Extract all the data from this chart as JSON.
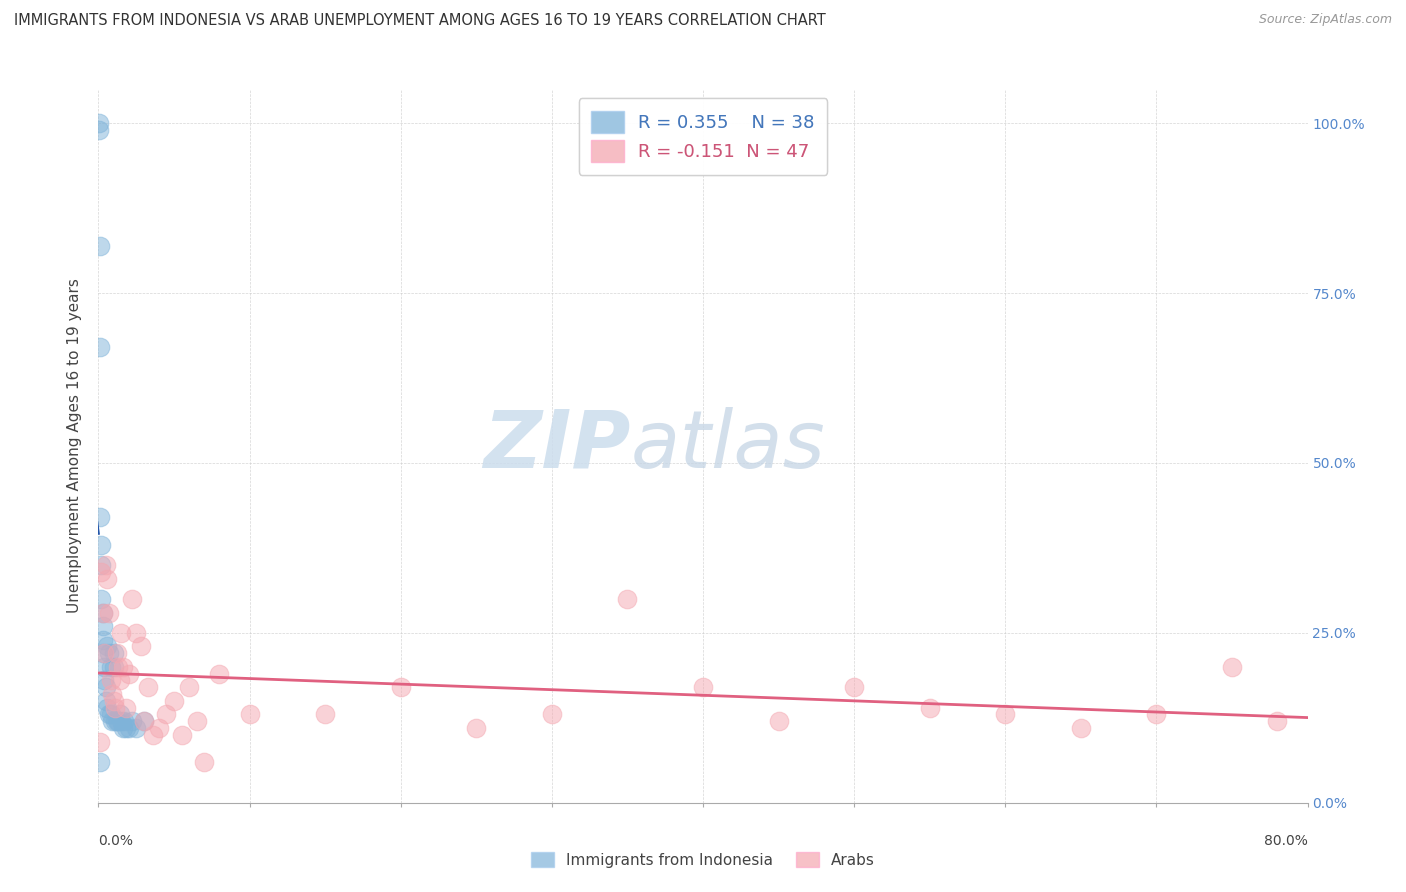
{
  "title": "IMMIGRANTS FROM INDONESIA VS ARAB UNEMPLOYMENT AMONG AGES 16 TO 19 YEARS CORRELATION CHART",
  "source": "Source: ZipAtlas.com",
  "ylabel": "Unemployment Among Ages 16 to 19 years",
  "legend_blue_r": "R = 0.355",
  "legend_blue_n": "N = 38",
  "legend_pink_r": "R = -0.151",
  "legend_pink_n": "N = 47",
  "blue_color": "#7FB3D9",
  "pink_color": "#F4A7B0",
  "blue_line_color": "#2255AA",
  "pink_line_color": "#E06080",
  "blue_scatter_x": [
    0.0005,
    0.0005,
    0.0008,
    0.001,
    0.001,
    0.0015,
    0.002,
    0.002,
    0.003,
    0.003,
    0.003,
    0.003,
    0.004,
    0.004,
    0.005,
    0.005,
    0.006,
    0.006,
    0.007,
    0.007,
    0.008,
    0.008,
    0.009,
    0.01,
    0.01,
    0.011,
    0.012,
    0.013,
    0.014,
    0.015,
    0.016,
    0.017,
    0.018,
    0.02,
    0.022,
    0.025,
    0.03,
    0.001
  ],
  "blue_scatter_y": [
    1.0,
    0.99,
    0.82,
    0.67,
    0.42,
    0.38,
    0.35,
    0.3,
    0.28,
    0.26,
    0.24,
    0.22,
    0.2,
    0.18,
    0.17,
    0.15,
    0.23,
    0.14,
    0.22,
    0.13,
    0.2,
    0.13,
    0.12,
    0.2,
    0.22,
    0.12,
    0.12,
    0.12,
    0.13,
    0.12,
    0.11,
    0.12,
    0.11,
    0.11,
    0.12,
    0.11,
    0.12,
    0.06
  ],
  "pink_scatter_x": [
    0.001,
    0.002,
    0.003,
    0.004,
    0.005,
    0.006,
    0.007,
    0.008,
    0.009,
    0.01,
    0.011,
    0.012,
    0.013,
    0.014,
    0.015,
    0.016,
    0.018,
    0.02,
    0.022,
    0.025,
    0.028,
    0.03,
    0.033,
    0.036,
    0.04,
    0.045,
    0.05,
    0.055,
    0.06,
    0.065,
    0.07,
    0.08,
    0.1,
    0.15,
    0.2,
    0.25,
    0.3,
    0.35,
    0.4,
    0.45,
    0.5,
    0.55,
    0.6,
    0.65,
    0.7,
    0.75,
    0.78
  ],
  "pink_scatter_y": [
    0.09,
    0.34,
    0.28,
    0.22,
    0.35,
    0.33,
    0.28,
    0.18,
    0.16,
    0.15,
    0.14,
    0.22,
    0.2,
    0.18,
    0.25,
    0.2,
    0.14,
    0.19,
    0.3,
    0.25,
    0.23,
    0.12,
    0.17,
    0.1,
    0.11,
    0.13,
    0.15,
    0.1,
    0.17,
    0.12,
    0.06,
    0.19,
    0.13,
    0.13,
    0.17,
    0.11,
    0.13,
    0.3,
    0.17,
    0.12,
    0.17,
    0.14,
    0.13,
    0.11,
    0.13,
    0.2,
    0.12
  ],
  "xlim": [
    0.0,
    0.8
  ],
  "ylim": [
    0.0,
    1.05
  ],
  "right_yticks": [
    0.0,
    0.25,
    0.5,
    0.75,
    1.0
  ],
  "right_yticklabels": [
    "0.0%",
    "25.0%",
    "50.0%",
    "75.0%",
    "100.0%"
  ],
  "figsize": [
    14.06,
    8.92
  ],
  "dpi": 100
}
